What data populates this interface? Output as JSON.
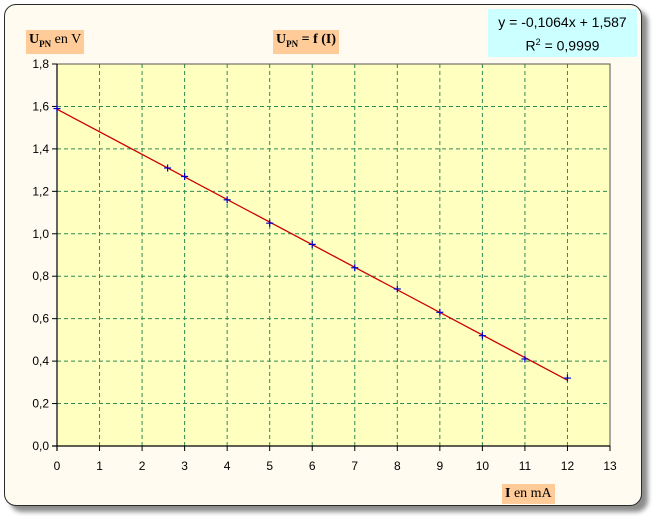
{
  "chart_data": {
    "type": "scatter",
    "title": "U PN = f (I)",
    "title_parts": {
      "main": "U",
      "sub": "PN",
      "rest": "= f (I)"
    },
    "ylabel_parts": {
      "main": "U",
      "sub": "PN",
      "rest": "en V"
    },
    "xlabel_parts": {
      "main": "I",
      "rest": "en mA"
    },
    "xlim": [
      0,
      13
    ],
    "ylim": [
      0,
      1.8
    ],
    "xticks": [
      "0",
      "1",
      "2",
      "3",
      "4",
      "5",
      "6",
      "7",
      "8",
      "9",
      "10",
      "11",
      "12",
      "13"
    ],
    "yticks": [
      "0,0",
      "0,2",
      "0,4",
      "0,6",
      "0,8",
      "1,0",
      "1,2",
      "1,4",
      "1,6",
      "1,8"
    ],
    "grid": true,
    "series": [
      {
        "x": [
          0,
          2.6,
          3,
          4,
          5,
          6,
          7,
          8,
          9,
          10,
          11,
          12
        ],
        "y": [
          1.59,
          1.31,
          1.27,
          1.16,
          1.05,
          0.95,
          0.84,
          0.74,
          0.63,
          0.52,
          0.41,
          0.32
        ]
      }
    ],
    "trendline": {
      "slope": -0.1064,
      "intercept": 1.587,
      "x_range": [
        0,
        12
      ],
      "equation": "y = -0,1064x + 1,587",
      "r2_prefix": "R",
      "r2_sup": "2",
      "r2_value": "= 0,9999"
    }
  },
  "colors": {
    "plot_bg": "#ffffc0",
    "grid": "#2e8b57",
    "trendline": "#cc0000",
    "marker": "#0000cc",
    "label_bg": "#ffcc99",
    "equation_bg": "#ccffff"
  }
}
